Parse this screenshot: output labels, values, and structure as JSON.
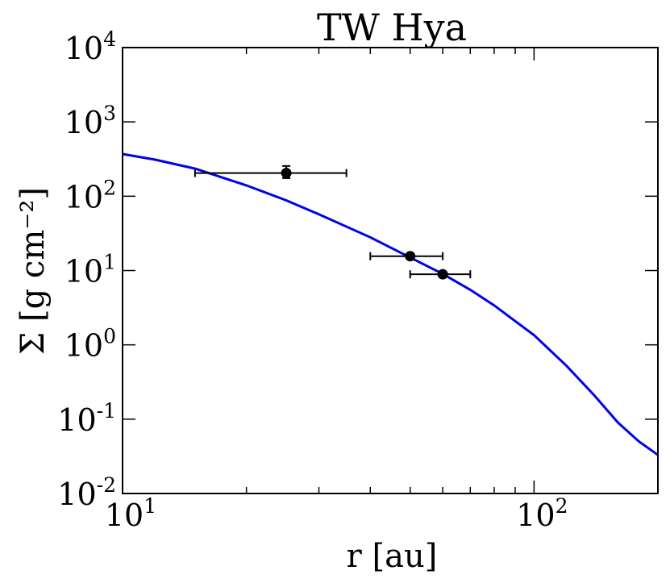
{
  "chart_data": {
    "type": "scatter",
    "title": "TW Hya",
    "xlabel": "r [au]",
    "ylabel": "Σ [g cm⁻²]",
    "x_scale": "log",
    "y_scale": "log",
    "xlim": [
      10,
      200
    ],
    "ylim": [
      0.01,
      10000
    ],
    "grid": false,
    "x_ticks": [
      {
        "value": 10,
        "base": "10",
        "exp": "1"
      },
      {
        "value": 100,
        "base": "10",
        "exp": "2"
      }
    ],
    "y_ticks": [
      {
        "value": 0.01,
        "base": "10",
        "exp": "-2"
      },
      {
        "value": 0.1,
        "base": "10",
        "exp": "-1"
      },
      {
        "value": 1,
        "base": "10",
        "exp": "0"
      },
      {
        "value": 10,
        "base": "10",
        "exp": "1"
      },
      {
        "value": 100,
        "base": "10",
        "exp": "2"
      },
      {
        "value": 1000,
        "base": "10",
        "exp": "3"
      },
      {
        "value": 10000,
        "base": "10",
        "exp": "4"
      }
    ],
    "points": [
      {
        "x": 25,
        "y": 205,
        "xerr": [
          15,
          35
        ],
        "yerr": [
          175,
          255
        ]
      },
      {
        "x": 50,
        "y": 15.6,
        "xerr": [
          40,
          60
        ]
      },
      {
        "x": 60,
        "y": 8.9,
        "xerr": [
          50,
          70
        ]
      }
    ],
    "model_curve": {
      "color": "#0000ee",
      "points": [
        [
          10,
          370
        ],
        [
          12,
          310
        ],
        [
          15,
          235
        ],
        [
          20,
          140
        ],
        [
          25,
          88
        ],
        [
          30,
          57
        ],
        [
          40,
          28
        ],
        [
          50,
          15
        ],
        [
          60,
          9
        ],
        [
          70,
          5.5
        ],
        [
          80,
          3.4
        ],
        [
          100,
          1.35
        ],
        [
          120,
          0.52
        ],
        [
          140,
          0.21
        ],
        [
          160,
          0.09
        ],
        [
          180,
          0.05
        ],
        [
          200,
          0.033
        ]
      ]
    },
    "marker_color": "#000000"
  }
}
